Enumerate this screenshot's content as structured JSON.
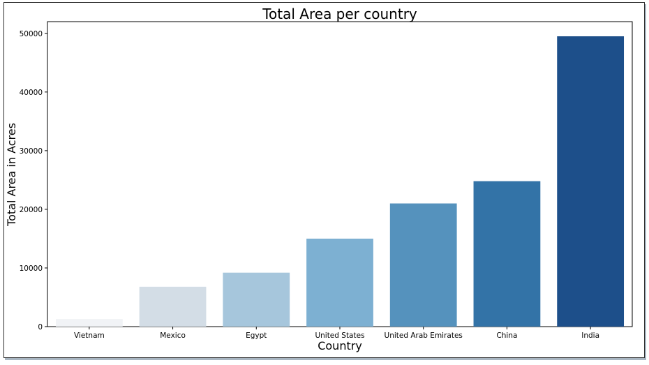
{
  "chart_data": {
    "type": "bar",
    "title": "Total Area per country",
    "xlabel": "Country",
    "ylabel": "Total Area in Acres",
    "categories": [
      "Vietnam",
      "Mexico",
      "Egypt",
      "United States",
      "United Arab Emirates",
      "China",
      "India"
    ],
    "values": [
      1300,
      6800,
      9200,
      15000,
      21000,
      24800,
      49500
    ],
    "ylim": [
      0,
      52000
    ],
    "yticks": [
      0,
      10000,
      20000,
      30000,
      40000,
      50000
    ],
    "grid": false,
    "legend": "none",
    "colors": [
      "#f1f3f6",
      "#d3dde6",
      "#a6c6dc",
      "#7db0d2",
      "#5592bd",
      "#3373a7",
      "#1d4f8a"
    ]
  }
}
